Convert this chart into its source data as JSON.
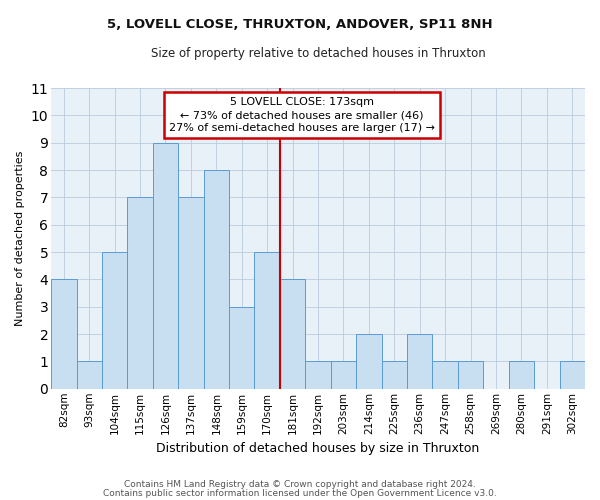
{
  "title": "5, LOVELL CLOSE, THRUXTON, ANDOVER, SP11 8NH",
  "subtitle": "Size of property relative to detached houses in Thruxton",
  "xlabel": "Distribution of detached houses by size in Thruxton",
  "ylabel": "Number of detached properties",
  "categories": [
    "82sqm",
    "93sqm",
    "104sqm",
    "115sqm",
    "126sqm",
    "137sqm",
    "148sqm",
    "159sqm",
    "170sqm",
    "181sqm",
    "192sqm",
    "203sqm",
    "214sqm",
    "225sqm",
    "236sqm",
    "247sqm",
    "258sqm",
    "269sqm",
    "280sqm",
    "291sqm",
    "302sqm"
  ],
  "values": [
    4,
    1,
    5,
    7,
    9,
    7,
    8,
    3,
    5,
    4,
    1,
    1,
    2,
    1,
    2,
    1,
    1,
    0,
    1,
    0,
    1
  ],
  "bar_color": "#c8dff2",
  "bar_edge_color": "#5b9bd5",
  "vline_bin_index": 8,
  "annotation_title": "5 LOVELL CLOSE: 173sqm",
  "annotation_line1": "← 73% of detached houses are smaller (46)",
  "annotation_line2": "27% of semi-detached houses are larger (17) →",
  "annotation_box_facecolor": "#ffffff",
  "annotation_box_edgecolor": "#cc0000",
  "vline_color": "#cc0000",
  "ylim": [
    0,
    11
  ],
  "yticks": [
    0,
    1,
    2,
    3,
    4,
    5,
    6,
    7,
    8,
    9,
    10,
    11
  ],
  "grid_color": "#bbccdd",
  "ax_facecolor": "#e8f0f8",
  "fig_facecolor": "#ffffff",
  "title_fontsize": 9.5,
  "subtitle_fontsize": 8.5,
  "ylabel_fontsize": 8,
  "xlabel_fontsize": 9,
  "tick_fontsize": 7.5,
  "ann_fontsize": 8,
  "footer_fontsize": 6.5,
  "footer1": "Contains HM Land Registry data © Crown copyright and database right 2024.",
  "footer2": "Contains public sector information licensed under the Open Government Licence v3.0."
}
